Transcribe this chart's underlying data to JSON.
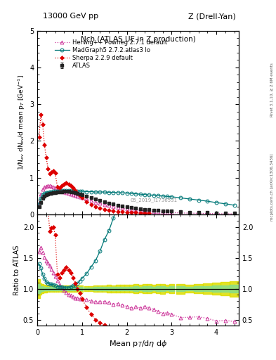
{
  "title_top": "13000 GeV pp",
  "title_right": "Z (Drell-Yan)",
  "plot_title": "Nch (ATLAS UE in Z production)",
  "ylabel_main": "1/N$_{ev}$ dN$_{ev}$/d mean p$_T$ [GeV$^{-1}$]",
  "ylabel_ratio": "Ratio to ATLAS",
  "xlabel": "Mean p$_T$/d$\\eta$ d$\\phi$",
  "watermark": "mcplots.cern.ch [arXiv:1306.3436]",
  "rivet_label": "Rivet 3.1.10, ≥ 2.6M events",
  "atlas_x": [
    0.04,
    0.08,
    0.12,
    0.16,
    0.2,
    0.24,
    0.28,
    0.32,
    0.36,
    0.4,
    0.45,
    0.5,
    0.55,
    0.6,
    0.65,
    0.7,
    0.75,
    0.8,
    0.85,
    0.9,
    0.95,
    1.0,
    1.1,
    1.2,
    1.3,
    1.4,
    1.5,
    1.6,
    1.7,
    1.8,
    1.9,
    2.0,
    2.1,
    2.2,
    2.3,
    2.4,
    2.5,
    2.6,
    2.7,
    2.8,
    2.9,
    3.0,
    3.2,
    3.4,
    3.6,
    3.8,
    4.0,
    4.2,
    4.4
  ],
  "atlas_y": [
    0.2,
    0.33,
    0.43,
    0.49,
    0.53,
    0.55,
    0.57,
    0.58,
    0.59,
    0.6,
    0.61,
    0.62,
    0.62,
    0.63,
    0.63,
    0.63,
    0.62,
    0.61,
    0.6,
    0.58,
    0.56,
    0.54,
    0.5,
    0.46,
    0.42,
    0.38,
    0.34,
    0.31,
    0.28,
    0.25,
    0.23,
    0.21,
    0.19,
    0.17,
    0.16,
    0.14,
    0.13,
    0.12,
    0.11,
    0.1,
    0.09,
    0.085,
    0.075,
    0.065,
    0.055,
    0.048,
    0.042,
    0.037,
    0.032
  ],
  "atlas_yerr": [
    0.015,
    0.015,
    0.015,
    0.015,
    0.015,
    0.015,
    0.015,
    0.015,
    0.015,
    0.015,
    0.015,
    0.015,
    0.015,
    0.015,
    0.015,
    0.015,
    0.015,
    0.015,
    0.015,
    0.015,
    0.015,
    0.015,
    0.01,
    0.01,
    0.01,
    0.01,
    0.009,
    0.009,
    0.008,
    0.008,
    0.007,
    0.007,
    0.006,
    0.006,
    0.005,
    0.005,
    0.005,
    0.004,
    0.004,
    0.004,
    0.003,
    0.003,
    0.003,
    0.002,
    0.002,
    0.002,
    0.002,
    0.002,
    0.002
  ],
  "herwig_x": [
    0.04,
    0.08,
    0.12,
    0.16,
    0.2,
    0.24,
    0.28,
    0.32,
    0.36,
    0.4,
    0.45,
    0.5,
    0.55,
    0.6,
    0.65,
    0.7,
    0.75,
    0.8,
    0.85,
    0.9,
    0.95,
    1.0,
    1.1,
    1.2,
    1.3,
    1.4,
    1.5,
    1.6,
    1.7,
    1.8,
    1.9,
    2.0,
    2.1,
    2.2,
    2.3,
    2.4,
    2.5,
    2.6,
    2.7,
    2.8,
    2.9,
    3.0,
    3.2,
    3.4,
    3.6,
    3.8,
    4.0,
    4.2,
    4.4
  ],
  "herwig_y": [
    0.32,
    0.55,
    0.68,
    0.74,
    0.77,
    0.78,
    0.78,
    0.76,
    0.74,
    0.72,
    0.69,
    0.66,
    0.63,
    0.61,
    0.59,
    0.57,
    0.55,
    0.53,
    0.51,
    0.49,
    0.47,
    0.45,
    0.41,
    0.37,
    0.33,
    0.3,
    0.27,
    0.24,
    0.21,
    0.19,
    0.17,
    0.15,
    0.13,
    0.12,
    0.11,
    0.1,
    0.09,
    0.08,
    0.07,
    0.06,
    0.055,
    0.05,
    0.04,
    0.035,
    0.03,
    0.025,
    0.02,
    0.018,
    0.015
  ],
  "madgraph_x": [
    0.04,
    0.08,
    0.12,
    0.16,
    0.2,
    0.24,
    0.28,
    0.32,
    0.36,
    0.4,
    0.45,
    0.5,
    0.55,
    0.6,
    0.65,
    0.7,
    0.75,
    0.8,
    0.85,
    0.9,
    0.95,
    1.0,
    1.1,
    1.2,
    1.3,
    1.4,
    1.5,
    1.6,
    1.7,
    1.8,
    1.9,
    2.0,
    2.1,
    2.2,
    2.3,
    2.4,
    2.5,
    2.6,
    2.7,
    2.8,
    2.9,
    3.0,
    3.2,
    3.4,
    3.6,
    3.8,
    4.0,
    4.2,
    4.4
  ],
  "madgraph_y": [
    0.28,
    0.44,
    0.53,
    0.57,
    0.59,
    0.6,
    0.61,
    0.62,
    0.63,
    0.63,
    0.63,
    0.64,
    0.64,
    0.64,
    0.64,
    0.64,
    0.64,
    0.64,
    0.63,
    0.63,
    0.63,
    0.63,
    0.62,
    0.62,
    0.61,
    0.61,
    0.61,
    0.6,
    0.6,
    0.59,
    0.59,
    0.58,
    0.57,
    0.56,
    0.55,
    0.54,
    0.53,
    0.52,
    0.51,
    0.5,
    0.49,
    0.48,
    0.45,
    0.42,
    0.39,
    0.36,
    0.32,
    0.29,
    0.25
  ],
  "sherpa_x": [
    0.04,
    0.08,
    0.12,
    0.16,
    0.2,
    0.24,
    0.28,
    0.32,
    0.36,
    0.4,
    0.45,
    0.5,
    0.55,
    0.6,
    0.65,
    0.7,
    0.75,
    0.8,
    0.85,
    0.9,
    0.95,
    1.0,
    1.1,
    1.2,
    1.3,
    1.4,
    1.5,
    1.6,
    1.7,
    1.8,
    1.9,
    2.0,
    2.1,
    2.2,
    2.3,
    2.4,
    2.5
  ],
  "sherpa_y": [
    2.1,
    2.72,
    2.45,
    1.9,
    1.55,
    1.25,
    1.1,
    1.15,
    1.18,
    1.12,
    0.75,
    0.73,
    0.78,
    0.82,
    0.85,
    0.82,
    0.78,
    0.72,
    0.65,
    0.58,
    0.52,
    0.45,
    0.35,
    0.27,
    0.21,
    0.17,
    0.14,
    0.11,
    0.09,
    0.08,
    0.07,
    0.06,
    0.055,
    0.05,
    0.045,
    0.04,
    0.035
  ],
  "atlas_color": "#222222",
  "herwig_color": "#cc3399",
  "madgraph_color": "#007777",
  "sherpa_color": "#dd0000",
  "green_band_color": "#88dd88",
  "yellow_band_color": "#dddd00",
  "xlim": [
    0,
    4.5
  ],
  "ylim_main": [
    0,
    5.0
  ],
  "ylim_ratio": [
    0.4,
    2.2
  ],
  "ratio_yticks": [
    0.5,
    1.0,
    1.5,
    2.0
  ],
  "main_yticks": [
    0,
    1,
    2,
    3,
    4,
    5
  ]
}
